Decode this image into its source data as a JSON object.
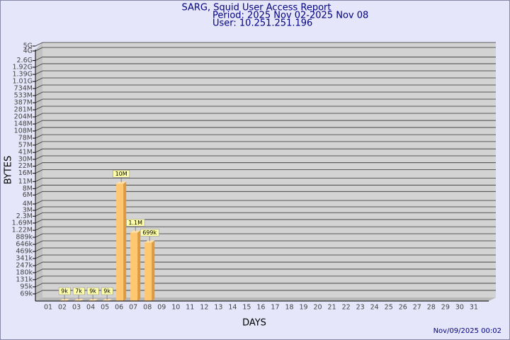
{
  "chart_data": {
    "type": "bar",
    "title": "SARG, Squid User Access Report",
    "subtitle": "Period: 2025 Nov 02-2025 Nov 08",
    "user": "User: 10.251.251.196",
    "y_label": "BYTES",
    "x_label": "DAYS",
    "footer": "Nov/09/2025 00:02",
    "log_scale": true,
    "grid": true,
    "color": "#ffc870",
    "categories": [
      "01",
      "02",
      "03",
      "04",
      "05",
      "06",
      "07",
      "08",
      "09",
      "10",
      "11",
      "12",
      "13",
      "14",
      "15",
      "16",
      "17",
      "18",
      "19",
      "20",
      "21",
      "22",
      "23",
      "24",
      "25",
      "26",
      "27",
      "28",
      "29",
      "30",
      "31"
    ],
    "values": [
      null,
      9000,
      7000,
      9000,
      9000,
      10000000,
      1100000,
      699000,
      null,
      null,
      null,
      null,
      null,
      null,
      null,
      null,
      null,
      null,
      null,
      null,
      null,
      null,
      null,
      null,
      null,
      null,
      null,
      null,
      null,
      null,
      null
    ],
    "value_labels": [
      null,
      "9k",
      "7k",
      "9k",
      "9k",
      "10M",
      "1.1M",
      "699k",
      null,
      null,
      null,
      null,
      null,
      null,
      null,
      null,
      null,
      null,
      null,
      null,
      null,
      null,
      null,
      null,
      null,
      null,
      null,
      null,
      null,
      null,
      null
    ],
    "ylim": [
      50000,
      5000000000
    ],
    "yticks": [
      {
        "value": 69000,
        "label": "69k"
      },
      {
        "value": 95000,
        "label": "95k"
      },
      {
        "value": 131000,
        "label": "131k"
      },
      {
        "value": 180000,
        "label": "180k"
      },
      {
        "value": 247000,
        "label": "247k"
      },
      {
        "value": 341000,
        "label": "341k"
      },
      {
        "value": 469000,
        "label": "469k"
      },
      {
        "value": 646000,
        "label": "646k"
      },
      {
        "value": 889000,
        "label": "889k"
      },
      {
        "value": 1220000,
        "label": "1.22M"
      },
      {
        "value": 1690000,
        "label": "1.69M"
      },
      {
        "value": 2300000,
        "label": "2.3M"
      },
      {
        "value": 3000000,
        "label": "3M"
      },
      {
        "value": 4000000,
        "label": "4M"
      },
      {
        "value": 6000000,
        "label": "6M"
      },
      {
        "value": 8000000,
        "label": "8M"
      },
      {
        "value": 11000000,
        "label": "11M"
      },
      {
        "value": 16000000,
        "label": "16M"
      },
      {
        "value": 22000000,
        "label": "22M"
      },
      {
        "value": 30000000,
        "label": "30M"
      },
      {
        "value": 41000000,
        "label": "41M"
      },
      {
        "value": 57000000,
        "label": "57M"
      },
      {
        "value": 78000000,
        "label": "78M"
      },
      {
        "value": 108000000,
        "label": "108M"
      },
      {
        "value": 148000000,
        "label": "148M"
      },
      {
        "value": 204000000,
        "label": "204M"
      },
      {
        "value": 281000000,
        "label": "281M"
      },
      {
        "value": 387000000,
        "label": "387M"
      },
      {
        "value": 533000000,
        "label": "533M"
      },
      {
        "value": 734000000,
        "label": "734M"
      },
      {
        "value": 1010000000,
        "label": "1.01G"
      },
      {
        "value": 1390000000,
        "label": "1.39G"
      },
      {
        "value": 1920000000,
        "label": "1.92G"
      },
      {
        "value": 2600000000,
        "label": "2.6G"
      },
      {
        "value": 4000000000,
        "label": "4G"
      },
      {
        "value": 5000000000,
        "label": "5G"
      }
    ]
  }
}
